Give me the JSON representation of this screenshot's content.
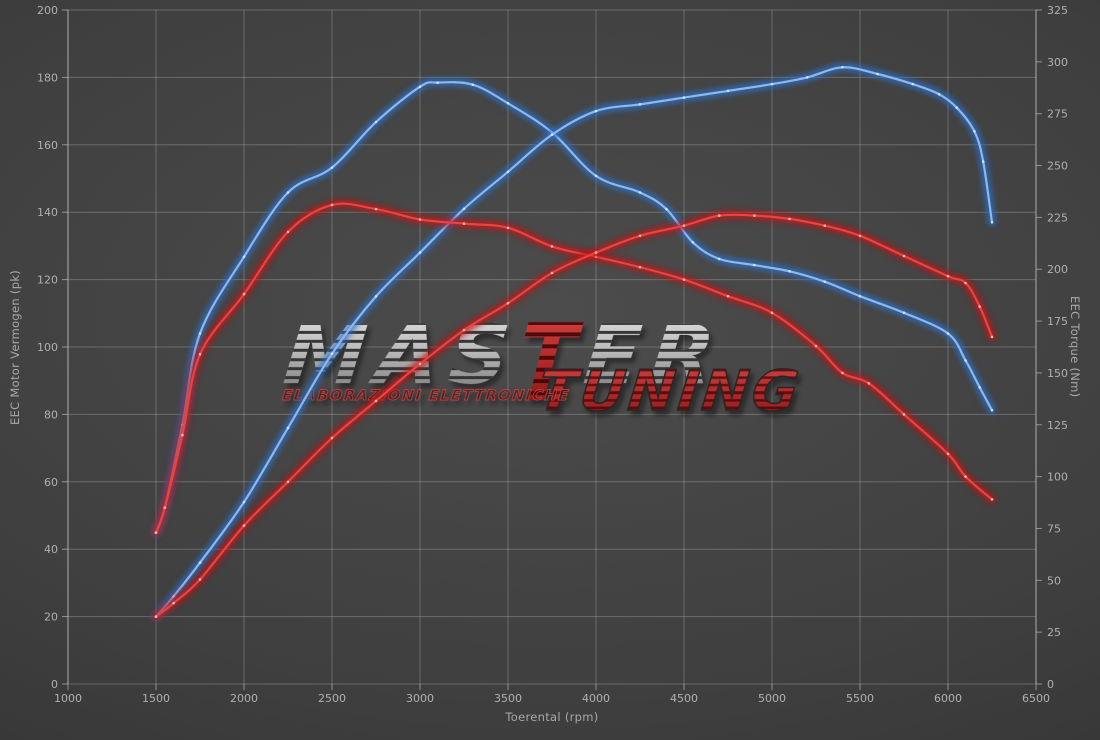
{
  "chart_data": {
    "type": "line",
    "title": "",
    "xlabel": "Toerental (rpm)",
    "ylabel_left": "EEC Motor Vermogen (pk)",
    "ylabel_right": "EEC Torque (Nm)",
    "x_axis": {
      "min": 1000,
      "max": 6500,
      "tick_step": 500
    },
    "y_left_axis": {
      "min": 0,
      "max": 200,
      "tick_step": 20
    },
    "y_right_axis": {
      "min": 0,
      "max": 325,
      "tick_step": 25
    },
    "grid": true,
    "legend": "none",
    "series": [
      {
        "name": "tuned-torque",
        "axis": "right",
        "unit": "Nm",
        "color": "#2f6fc4",
        "core_color": "#8ab8f0",
        "dot_color": "#d8e8ff",
        "points": [
          [
            1500,
            73
          ],
          [
            1550,
            85
          ],
          [
            1650,
            125
          ],
          [
            1750,
            169
          ],
          [
            2000,
            206
          ],
          [
            2250,
            237
          ],
          [
            2500,
            249
          ],
          [
            2750,
            271
          ],
          [
            3000,
            288
          ],
          [
            3100,
            290
          ],
          [
            3300,
            289
          ],
          [
            3500,
            280
          ],
          [
            3750,
            266
          ],
          [
            4000,
            245
          ],
          [
            4250,
            237
          ],
          [
            4400,
            229
          ],
          [
            4550,
            213
          ],
          [
            4700,
            205
          ],
          [
            4900,
            202
          ],
          [
            5100,
            199
          ],
          [
            5300,
            194
          ],
          [
            5500,
            187
          ],
          [
            5750,
            179
          ],
          [
            6000,
            169
          ],
          [
            6100,
            156
          ],
          [
            6180,
            143
          ],
          [
            6250,
            132
          ]
        ]
      },
      {
        "name": "tuned-power",
        "axis": "left",
        "unit": "pk",
        "color": "#2f6fc4",
        "core_color": "#8ab8f0",
        "dot_color": "#d8e8ff",
        "points": [
          [
            1500,
            20
          ],
          [
            1600,
            26
          ],
          [
            1750,
            36
          ],
          [
            2000,
            54
          ],
          [
            2250,
            76
          ],
          [
            2500,
            98
          ],
          [
            2750,
            115
          ],
          [
            3000,
            128
          ],
          [
            3250,
            141
          ],
          [
            3500,
            152
          ],
          [
            3750,
            163
          ],
          [
            4000,
            170
          ],
          [
            4250,
            172
          ],
          [
            4500,
            174
          ],
          [
            4750,
            176
          ],
          [
            5000,
            178
          ],
          [
            5200,
            180
          ],
          [
            5400,
            183
          ],
          [
            5600,
            181
          ],
          [
            5800,
            178
          ],
          [
            5950,
            175
          ],
          [
            6050,
            171
          ],
          [
            6150,
            164
          ],
          [
            6200,
            155
          ],
          [
            6250,
            137
          ]
        ]
      },
      {
        "name": "stock-torque",
        "axis": "right",
        "unit": "Nm",
        "color": "#c01818",
        "core_color": "#f04040",
        "dot_color": "#ffc5b8",
        "points": [
          [
            1500,
            73
          ],
          [
            1550,
            85
          ],
          [
            1650,
            120
          ],
          [
            1750,
            159
          ],
          [
            2000,
            188
          ],
          [
            2250,
            218
          ],
          [
            2500,
            231
          ],
          [
            2750,
            229
          ],
          [
            3000,
            224
          ],
          [
            3250,
            222
          ],
          [
            3500,
            220
          ],
          [
            3750,
            211
          ],
          [
            4000,
            206
          ],
          [
            4250,
            201
          ],
          [
            4500,
            195
          ],
          [
            4750,
            187
          ],
          [
            5000,
            179
          ],
          [
            5250,
            163
          ],
          [
            5400,
            150
          ],
          [
            5550,
            145
          ],
          [
            5750,
            130
          ],
          [
            6000,
            111
          ],
          [
            6100,
            100
          ],
          [
            6250,
            89
          ]
        ]
      },
      {
        "name": "stock-power",
        "axis": "left",
        "unit": "pk",
        "color": "#c01818",
        "core_color": "#f04040",
        "dot_color": "#ffc5b8",
        "points": [
          [
            1500,
            20
          ],
          [
            1600,
            24
          ],
          [
            1750,
            31
          ],
          [
            2000,
            47
          ],
          [
            2250,
            60
          ],
          [
            2500,
            73
          ],
          [
            2750,
            84
          ],
          [
            3000,
            95
          ],
          [
            3250,
            105
          ],
          [
            3500,
            113
          ],
          [
            3750,
            122
          ],
          [
            4000,
            128
          ],
          [
            4250,
            133
          ],
          [
            4500,
            136
          ],
          [
            4700,
            139
          ],
          [
            4900,
            139
          ],
          [
            5100,
            138
          ],
          [
            5300,
            136
          ],
          [
            5500,
            133
          ],
          [
            5750,
            127
          ],
          [
            6000,
            121
          ],
          [
            6100,
            119
          ],
          [
            6180,
            112
          ],
          [
            6250,
            103
          ]
        ]
      }
    ]
  },
  "watermark": {
    "master_prefix": "MAS",
    "master_t": "T",
    "master_suffix": "ER",
    "master_full": "MASTER",
    "tuning": "TUNING",
    "subtitle": "ELABORAZIONI ELETTRONICHE",
    "gray_color": "#b5b5b5",
    "red_color": "#b22424"
  }
}
